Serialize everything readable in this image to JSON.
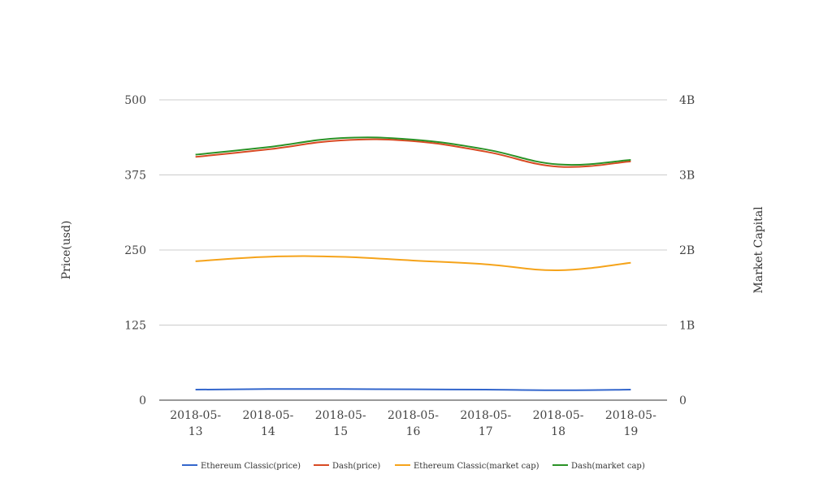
{
  "chart_data": {
    "type": "line",
    "title": "",
    "categories": [
      "2018-05-13",
      "2018-05-14",
      "2018-05-15",
      "2018-05-16",
      "2018-05-17",
      "2018-05-18",
      "2018-05-19"
    ],
    "category_lines": [
      [
        "2018-05-",
        "13"
      ],
      [
        "2018-05-",
        "14"
      ],
      [
        "2018-05-",
        "15"
      ],
      [
        "2018-05-",
        "16"
      ],
      [
        "2018-05-",
        "17"
      ],
      [
        "2018-05-",
        "18"
      ],
      [
        "2018-05-",
        "19"
      ]
    ],
    "y_left": {
      "label": "Price(usd)",
      "min": 0,
      "max": 500,
      "ticks": [
        0,
        125,
        250,
        375,
        500
      ],
      "tick_labels": [
        "0",
        "125",
        "250",
        "375",
        "500"
      ]
    },
    "y_right": {
      "label": "Market Capital",
      "min": 0,
      "max": 4000000000,
      "ticks": [
        0,
        1000000000,
        2000000000,
        3000000000,
        4000000000
      ],
      "tick_labels": [
        "0",
        "1B",
        "2B",
        "3B",
        "4B"
      ]
    },
    "grid": true,
    "legend_position": "bottom",
    "series": [
      {
        "name": "Ethereum Classic(price)",
        "axis": "left",
        "color": "#3366cc",
        "values": [
          17.5,
          18.5,
          18.5,
          18,
          17.5,
          16.5,
          17.5
        ]
      },
      {
        "name": "Dash(price)",
        "axis": "right",
        "color": "#d84a23",
        "values": [
          3240000000,
          3340000000,
          3460000000,
          3450000000,
          3310000000,
          3110000000,
          3180000000
        ]
      },
      {
        "name": "Ethereum Classic(market cap)",
        "axis": "right",
        "color": "#f5a31a",
        "values": [
          1850000000,
          1910000000,
          1910000000,
          1860000000,
          1810000000,
          1730000000,
          1830000000
        ]
      },
      {
        "name": "Dash(market cap)",
        "axis": "right",
        "color": "#2a9226",
        "values": [
          3270000000,
          3370000000,
          3490000000,
          3470000000,
          3340000000,
          3140000000,
          3200000000
        ]
      }
    ]
  }
}
